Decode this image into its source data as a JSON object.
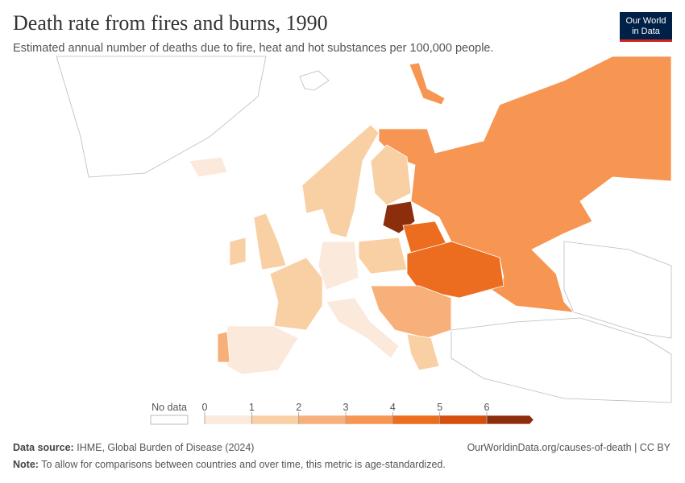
{
  "header": {
    "title": "Death rate from fires and burns, 1990",
    "subtitle": "Estimated annual number of deaths due to fire, heat and hot substances per 100,000 people.",
    "logo": [
      "Our World",
      "in Data"
    ]
  },
  "legend": {
    "no_data": "No data",
    "ticks": [
      0,
      1,
      2,
      3,
      4,
      5,
      6
    ],
    "colors": [
      "#fbe9dc",
      "#f9cfa4",
      "#f8b07a",
      "#f79553",
      "#ec6d1f",
      "#d54f0f",
      "#8c2d0b"
    ]
  },
  "footer": {
    "source_label": "Data source:",
    "source": "IHME, Global Burden of Disease (2024)",
    "url": "OurWorldinData.org/causes-of-death | CC BY",
    "note_label": "Note:",
    "note": "To allow for comparisons between countries and over time, this metric is age-standardized."
  }
}
